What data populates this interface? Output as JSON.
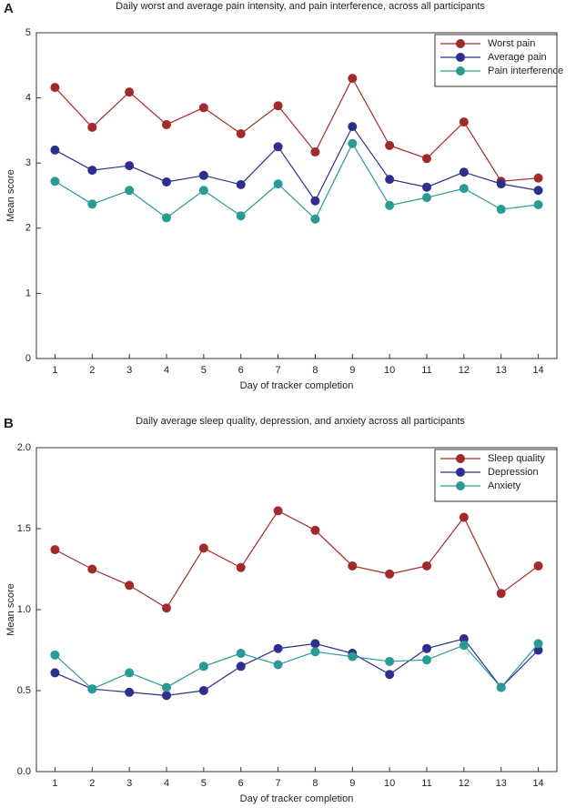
{
  "chart_data": [
    {
      "type": "line",
      "panel": "A",
      "title": "Daily worst and average pain intensity, and pain interference, across all participants",
      "x_label": "Day of tracker completion",
      "y_label": "Mean score",
      "categories": [
        "1",
        "2",
        "3",
        "4",
        "5",
        "6",
        "7",
        "8",
        "9",
        "10",
        "11",
        "12",
        "13",
        "14"
      ],
      "series": [
        {
          "name": "Worst pain",
          "color": "#a32a2a",
          "values": [
            4.16,
            3.55,
            4.09,
            3.59,
            3.85,
            3.45,
            3.88,
            3.17,
            4.3,
            3.27,
            3.07,
            3.63,
            2.72,
            2.77
          ]
        },
        {
          "name": "Average pain",
          "color": "#2e2e8c",
          "values": [
            3.2,
            2.89,
            2.96,
            2.71,
            2.81,
            2.67,
            3.25,
            2.42,
            3.56,
            2.75,
            2.63,
            2.86,
            2.68,
            2.58
          ]
        },
        {
          "name": "Pain interference",
          "color": "#2a9a94",
          "values": [
            2.72,
            2.37,
            2.58,
            2.16,
            2.58,
            2.19,
            2.68,
            2.14,
            3.3,
            2.35,
            2.47,
            2.61,
            2.29,
            2.36
          ]
        }
      ],
      "ylim": [
        0,
        5
      ],
      "yticks": [
        0,
        1,
        2,
        3,
        4,
        5
      ],
      "legend": "top-right"
    },
    {
      "type": "line",
      "panel": "B",
      "title": "Daily average sleep quality, depression, and anxiety across all participants",
      "x_label": "Day of tracker completion",
      "y_label": "Mean score",
      "categories": [
        "1",
        "2",
        "3",
        "4",
        "5",
        "6",
        "7",
        "8",
        "9",
        "10",
        "11",
        "12",
        "13",
        "14"
      ],
      "series": [
        {
          "name": "Sleep quality",
          "color": "#a32a2a",
          "values": [
            1.37,
            1.25,
            1.15,
            1.01,
            1.38,
            1.26,
            1.61,
            1.49,
            1.27,
            1.22,
            1.27,
            1.57,
            1.1,
            1.27
          ]
        },
        {
          "name": "Depression",
          "color": "#2e2e8c",
          "values": [
            0.61,
            0.51,
            0.49,
            0.47,
            0.5,
            0.65,
            0.76,
            0.79,
            0.73,
            0.6,
            0.76,
            0.82,
            0.52,
            0.75
          ]
        },
        {
          "name": "Anxiety",
          "color": "#2a9a94",
          "values": [
            0.72,
            0.51,
            0.61,
            0.52,
            0.65,
            0.73,
            0.66,
            0.74,
            0.71,
            0.68,
            0.69,
            0.78,
            0.52,
            0.79
          ]
        }
      ],
      "ylim": [
        0,
        2
      ],
      "yticks": [
        {
          "value": 0,
          "label": "0.0"
        },
        0.5,
        {
          "value": 1,
          "label": "1.0"
        },
        1.5,
        {
          "value": 2,
          "label": "2.0"
        }
      ],
      "legend": "top-right"
    }
  ]
}
